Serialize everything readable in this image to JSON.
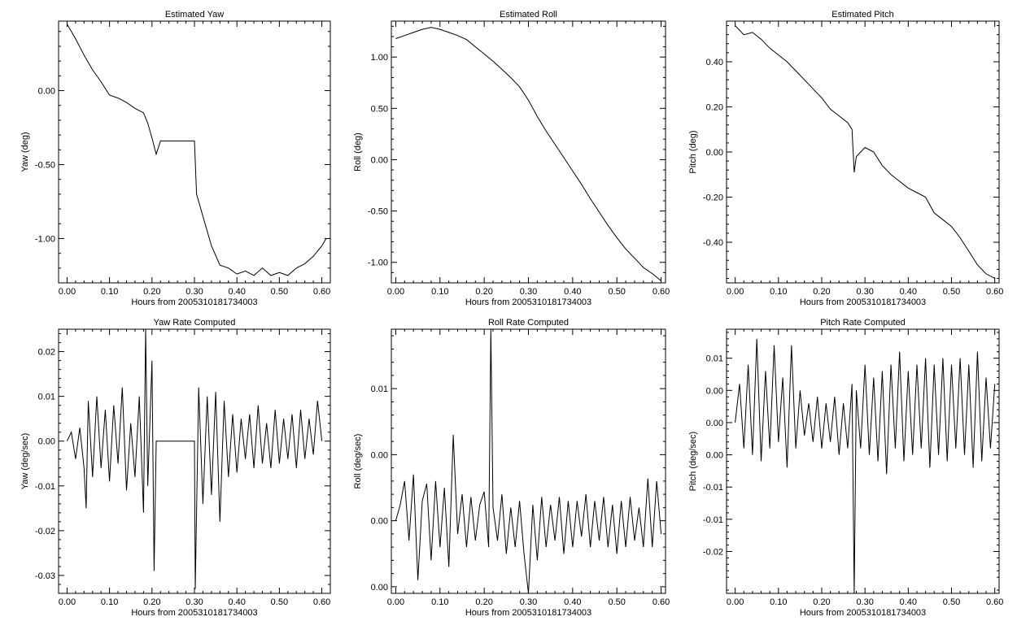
{
  "figure": {
    "background": "#ffffff",
    "line_color": "#000000"
  },
  "chart_data": [
    {
      "type": "line",
      "title": "Estimated Yaw",
      "xlabel": "Hours from 2005310181734003",
      "ylabel": "Yaw (deg)",
      "xlim": [
        -0.02,
        0.62
      ],
      "ylim": [
        -1.3,
        0.47
      ],
      "xticks": [
        0,
        0.1,
        0.2,
        0.3,
        0.4,
        0.5,
        0.6
      ],
      "xtick_labels": [
        "0.00",
        "0.10",
        "0.20",
        "0.30",
        "0.40",
        "0.50",
        "0.60"
      ],
      "yticks": [
        0,
        -0.5,
        -1.0
      ],
      "ytick_labels": [
        "0.00",
        "-0.50",
        "-1.00"
      ],
      "grid": false,
      "x": [
        0,
        0.02,
        0.04,
        0.06,
        0.08,
        0.1,
        0.12,
        0.14,
        0.16,
        0.18,
        0.19,
        0.2,
        0.21,
        0.22,
        0.25,
        0.3,
        0.305,
        0.31,
        0.32,
        0.33,
        0.34,
        0.36,
        0.38,
        0.4,
        0.42,
        0.44,
        0.46,
        0.48,
        0.5,
        0.52,
        0.54,
        0.56,
        0.58,
        0.6,
        0.61
      ],
      "y": [
        0.45,
        0.35,
        0.24,
        0.14,
        0.06,
        -0.03,
        -0.05,
        -0.08,
        -0.12,
        -0.15,
        -0.22,
        -0.32,
        -0.43,
        -0.34,
        -0.34,
        -0.34,
        -0.7,
        -0.75,
        -0.85,
        -0.95,
        -1.05,
        -1.18,
        -1.2,
        -1.24,
        -1.22,
        -1.25,
        -1.2,
        -1.25,
        -1.23,
        -1.25,
        -1.2,
        -1.17,
        -1.12,
        -1.05,
        -1.0
      ]
    },
    {
      "type": "line",
      "title": "Estimated Roll",
      "xlabel": "Hours from 2005310181734003",
      "ylabel": "Roll (deg)",
      "xlim": [
        -0.01,
        0.61
      ],
      "ylim": [
        -1.2,
        1.35
      ],
      "xticks": [
        0,
        0.1,
        0.2,
        0.3,
        0.4,
        0.5,
        0.6
      ],
      "xtick_labels": [
        "0.00",
        "0.10",
        "0.20",
        "0.30",
        "0.40",
        "0.50",
        "0.60"
      ],
      "yticks": [
        1.0,
        0.5,
        0,
        -0.5,
        -1.0
      ],
      "ytick_labels": [
        "1.00",
        "0.50",
        "0.00",
        "-0.50",
        "-1.00"
      ],
      "grid": false,
      "x": [
        0,
        0.02,
        0.04,
        0.06,
        0.08,
        0.1,
        0.12,
        0.14,
        0.16,
        0.18,
        0.2,
        0.22,
        0.24,
        0.26,
        0.28,
        0.3,
        0.32,
        0.34,
        0.36,
        0.38,
        0.4,
        0.42,
        0.44,
        0.46,
        0.48,
        0.5,
        0.52,
        0.54,
        0.56,
        0.58,
        0.6
      ],
      "y": [
        1.18,
        1.21,
        1.24,
        1.27,
        1.29,
        1.27,
        1.24,
        1.21,
        1.17,
        1.1,
        1.03,
        0.96,
        0.88,
        0.8,
        0.71,
        0.58,
        0.42,
        0.28,
        0.15,
        0.02,
        -0.11,
        -0.24,
        -0.38,
        -0.51,
        -0.64,
        -0.76,
        -0.87,
        -0.96,
        -1.05,
        -1.11,
        -1.18
      ]
    },
    {
      "type": "line",
      "title": "Estimated Pitch",
      "xlabel": "Hours from 2005310181734003",
      "ylabel": "Pitch (deg)",
      "xlim": [
        -0.02,
        0.61
      ],
      "ylim": [
        -0.58,
        0.58
      ],
      "xticks": [
        0,
        0.1,
        0.2,
        0.3,
        0.4,
        0.5,
        0.6
      ],
      "xtick_labels": [
        "0.00",
        "0.10",
        "0.20",
        "0.30",
        "0.40",
        "0.50",
        "0.60"
      ],
      "yticks": [
        0.4,
        0.2,
        0,
        -0.2,
        -0.4
      ],
      "ytick_labels": [
        "0.40",
        "0.20",
        "0.00",
        "-0.20",
        "-0.40"
      ],
      "grid": false,
      "x": [
        0,
        0.02,
        0.04,
        0.06,
        0.08,
        0.1,
        0.12,
        0.14,
        0.16,
        0.18,
        0.2,
        0.22,
        0.24,
        0.26,
        0.27,
        0.275,
        0.28,
        0.3,
        0.32,
        0.34,
        0.36,
        0.38,
        0.4,
        0.42,
        0.44,
        0.46,
        0.48,
        0.5,
        0.52,
        0.54,
        0.56,
        0.58,
        0.6
      ],
      "y": [
        0.56,
        0.52,
        0.53,
        0.5,
        0.46,
        0.43,
        0.4,
        0.36,
        0.32,
        0.28,
        0.24,
        0.19,
        0.16,
        0.13,
        0.1,
        -0.09,
        -0.02,
        0.02,
        0.0,
        -0.06,
        -0.1,
        -0.13,
        -0.16,
        -0.18,
        -0.2,
        -0.27,
        -0.3,
        -0.33,
        -0.38,
        -0.44,
        -0.5,
        -0.54,
        -0.56
      ]
    },
    {
      "type": "line",
      "title": "Yaw Rate Computed",
      "xlabel": "Hours from 2005310181734003",
      "ylabel": "Yaw (deg/sec)",
      "xlim": [
        -0.02,
        0.62
      ],
      "ylim": [
        -0.034,
        0.025
      ],
      "xticks": [
        0,
        0.1,
        0.2,
        0.3,
        0.4,
        0.5,
        0.6
      ],
      "xtick_labels": [
        "0.00",
        "0.10",
        "0.20",
        "0.30",
        "0.40",
        "0.50",
        "0.60"
      ],
      "yticks": [
        0.02,
        0.01,
        0,
        -0.01,
        -0.02,
        -0.03
      ],
      "ytick_labels": [
        "0.02",
        "0.01",
        "0.00",
        "-0.01",
        "-0.02",
        "-0.03"
      ],
      "grid": false,
      "x": [
        0,
        0.01,
        0.02,
        0.03,
        0.04,
        0.045,
        0.05,
        0.06,
        0.07,
        0.08,
        0.09,
        0.1,
        0.11,
        0.12,
        0.13,
        0.14,
        0.15,
        0.16,
        0.17,
        0.18,
        0.185,
        0.19,
        0.2,
        0.205,
        0.21,
        0.22,
        0.25,
        0.3,
        0.302,
        0.31,
        0.32,
        0.33,
        0.34,
        0.35,
        0.36,
        0.37,
        0.38,
        0.39,
        0.4,
        0.41,
        0.42,
        0.43,
        0.44,
        0.45,
        0.46,
        0.47,
        0.48,
        0.49,
        0.5,
        0.51,
        0.52,
        0.53,
        0.54,
        0.55,
        0.56,
        0.57,
        0.58,
        0.59,
        0.6
      ],
      "y": [
        0.0,
        0.002,
        -0.004,
        0.003,
        -0.006,
        -0.015,
        0.009,
        -0.008,
        0.01,
        -0.006,
        0.007,
        -0.009,
        0.008,
        -0.005,
        0.012,
        -0.011,
        0.004,
        -0.008,
        0.01,
        -0.016,
        0.025,
        -0.01,
        0.018,
        -0.029,
        0.0,
        0.0,
        0.0,
        0.0,
        -0.033,
        0.012,
        -0.014,
        0.01,
        -0.012,
        0.011,
        -0.018,
        0.009,
        -0.008,
        0.006,
        -0.007,
        0.005,
        -0.004,
        0.006,
        -0.006,
        0.008,
        -0.005,
        0.004,
        -0.006,
        0.007,
        -0.005,
        0.005,
        -0.004,
        0.006,
        -0.006,
        0.007,
        -0.004,
        0.005,
        -0.003,
        0.009,
        0.0
      ]
    },
    {
      "type": "line",
      "title": "Roll Rate Computed",
      "xlabel": "Hours from 2005310181734003",
      "ylabel": "Roll (deg/sec)",
      "xlim": [
        -0.01,
        0.61
      ],
      "ylim": [
        -0.0055,
        0.0145
      ],
      "xticks": [
        0,
        0.1,
        0.2,
        0.3,
        0.4,
        0.5,
        0.6
      ],
      "xtick_labels": [
        "0.00",
        "0.10",
        "0.20",
        "0.30",
        "0.40",
        "0.50",
        "0.60"
      ],
      "yticks": [
        0.01,
        0.005,
        0,
        -0.005
      ],
      "ytick_labels": [
        "0.01",
        "0.00",
        "0.00",
        "0.00"
      ],
      "grid": false,
      "x": [
        0,
        0.01,
        0.02,
        0.03,
        0.04,
        0.05,
        0.06,
        0.07,
        0.08,
        0.09,
        0.1,
        0.11,
        0.12,
        0.13,
        0.14,
        0.15,
        0.16,
        0.17,
        0.18,
        0.19,
        0.2,
        0.21,
        0.215,
        0.22,
        0.23,
        0.24,
        0.25,
        0.26,
        0.27,
        0.28,
        0.29,
        0.3,
        0.31,
        0.32,
        0.33,
        0.34,
        0.35,
        0.36,
        0.37,
        0.38,
        0.39,
        0.4,
        0.41,
        0.42,
        0.43,
        0.44,
        0.45,
        0.46,
        0.47,
        0.48,
        0.49,
        0.5,
        0.51,
        0.52,
        0.53,
        0.54,
        0.55,
        0.56,
        0.57,
        0.58,
        0.59,
        0.6
      ],
      "y": [
        0.0,
        0.0012,
        0.003,
        -0.0015,
        0.0035,
        -0.0045,
        0.0015,
        0.0028,
        -0.003,
        0.003,
        -0.002,
        0.0025,
        -0.0035,
        0.0065,
        -0.001,
        0.002,
        -0.002,
        0.0018,
        -0.0015,
        0.0012,
        0.0022,
        -0.002,
        0.0145,
        0.001,
        -0.0015,
        0.002,
        -0.0025,
        0.001,
        -0.002,
        0.0015,
        -0.0025,
        -0.0055,
        0.0012,
        -0.003,
        0.0018,
        -0.002,
        0.0012,
        -0.0015,
        0.0018,
        -0.0025,
        0.0015,
        -0.002,
        0.0015,
        -0.0012,
        0.002,
        -0.002,
        0.0015,
        -0.0015,
        0.0018,
        -0.002,
        0.0012,
        -0.0025,
        0.0015,
        -0.002,
        0.0018,
        -0.0015,
        0.001,
        -0.002,
        0.0032,
        -0.002,
        0.003,
        -0.001
      ]
    },
    {
      "type": "line",
      "title": "Pitch Rate Computed",
      "xlabel": "Hours from 2005310181734003",
      "ylabel": "Pitch (deg/sec)",
      "xlim": [
        -0.02,
        0.61
      ],
      "ylim": [
        -0.0265,
        0.0145
      ],
      "xticks": [
        0,
        0.1,
        0.2,
        0.3,
        0.4,
        0.5,
        0.6
      ],
      "xtick_labels": [
        "0.00",
        "0.10",
        "0.20",
        "0.30",
        "0.40",
        "0.50",
        "0.60"
      ],
      "yticks": [
        0.01,
        0.005,
        0,
        -0.005,
        -0.01,
        -0.015,
        -0.02
      ],
      "ytick_labels": [
        "0.01",
        "0.00",
        "0.00",
        "0.00",
        "-0.01",
        "-0.01",
        "-0.02"
      ],
      "grid": false,
      "x": [
        0,
        0.01,
        0.02,
        0.03,
        0.04,
        0.05,
        0.06,
        0.07,
        0.08,
        0.09,
        0.1,
        0.11,
        0.12,
        0.13,
        0.14,
        0.15,
        0.16,
        0.17,
        0.18,
        0.19,
        0.2,
        0.21,
        0.22,
        0.23,
        0.24,
        0.25,
        0.26,
        0.27,
        0.275,
        0.28,
        0.29,
        0.3,
        0.31,
        0.32,
        0.33,
        0.34,
        0.35,
        0.36,
        0.37,
        0.38,
        0.39,
        0.4,
        0.41,
        0.42,
        0.43,
        0.44,
        0.45,
        0.46,
        0.47,
        0.48,
        0.49,
        0.5,
        0.51,
        0.52,
        0.53,
        0.54,
        0.55,
        0.56,
        0.57,
        0.58,
        0.59,
        0.6
      ],
      "y": [
        0.0,
        0.006,
        -0.004,
        0.009,
        -0.005,
        0.013,
        -0.006,
        0.008,
        -0.004,
        0.012,
        -0.003,
        0.007,
        -0.007,
        0.012,
        -0.004,
        0.005,
        -0.002,
        0.003,
        -0.003,
        0.004,
        -0.004,
        0.003,
        -0.003,
        0.004,
        -0.005,
        0.003,
        -0.004,
        0.006,
        -0.0265,
        0.005,
        -0.004,
        0.009,
        -0.005,
        0.007,
        -0.006,
        0.008,
        -0.008,
        0.009,
        -0.004,
        0.011,
        -0.006,
        0.008,
        -0.005,
        0.009,
        -0.004,
        0.01,
        -0.007,
        0.009,
        -0.005,
        0.01,
        -0.006,
        0.009,
        -0.004,
        0.01,
        -0.005,
        0.009,
        -0.007,
        0.011,
        -0.006,
        0.007,
        -0.004,
        0.006
      ]
    }
  ]
}
